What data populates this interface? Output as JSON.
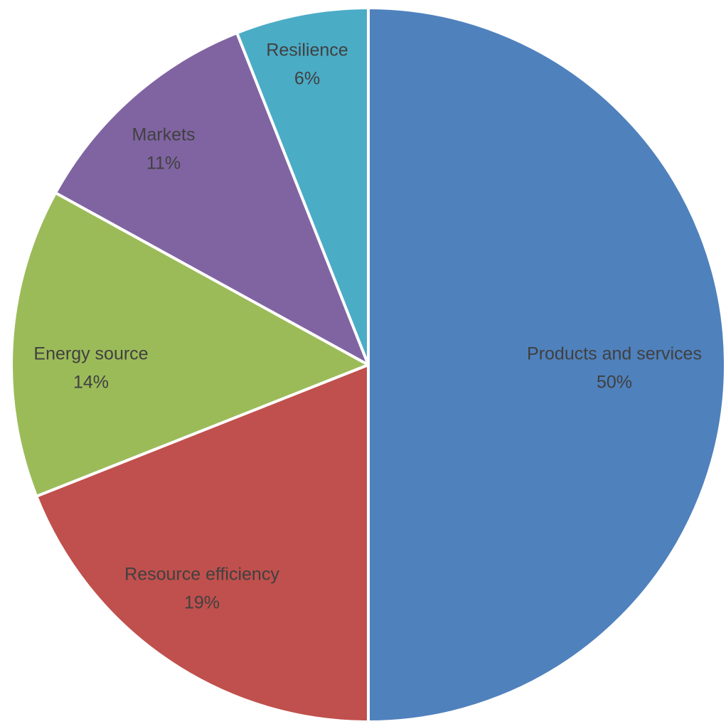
{
  "chart_data": {
    "type": "pie",
    "title": "",
    "start_angle_deg": 0,
    "direction": "clockwise",
    "legend": "none",
    "slices": [
      {
        "label": "Products and services",
        "value": 50,
        "percent_label": "50%",
        "color": "#4F81BD"
      },
      {
        "label": "Resource efficiency",
        "value": 19,
        "percent_label": "19%",
        "color": "#C0504D"
      },
      {
        "label": "Energy source",
        "value": 14,
        "percent_label": "14%",
        "color": "#9BBB59"
      },
      {
        "label": "Markets",
        "value": 11,
        "percent_label": "11%",
        "color": "#8064A2"
      },
      {
        "label": "Resilience",
        "value": 6,
        "percent_label": "6%",
        "color": "#4BACC6"
      }
    ]
  }
}
